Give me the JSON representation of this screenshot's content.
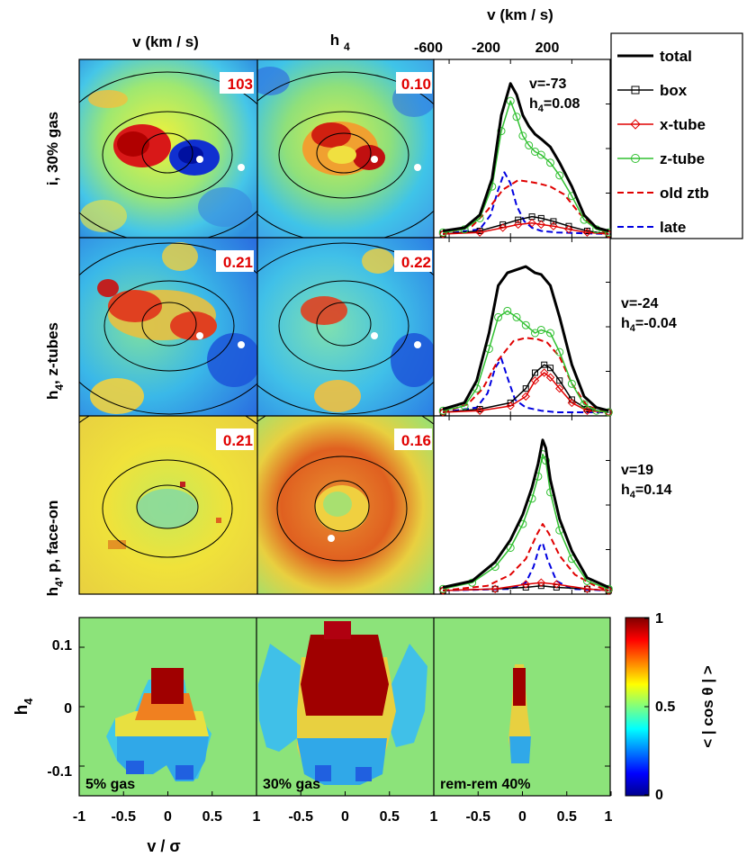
{
  "header": {
    "col1_title": "v (km / s)",
    "col2_title": "h",
    "col2_sub": "4",
    "col3_title": "v (km / s)",
    "col3_ticks": [
      "-600",
      "-200",
      "200"
    ]
  },
  "rows": [
    {
      "label": "i, 30% gas",
      "label_sub": "",
      "map_v_badge": "103",
      "map_h4_badge": "0.10",
      "annot_v": "v=-73",
      "annot_h": "h",
      "annot_h_sub": "4",
      "annot_h_val": "=0.08"
    },
    {
      "label": "h",
      "label_sub": "4",
      "label_rest": ", z-tubes",
      "map_v_badge": "0.21",
      "map_h4_badge": "0.22",
      "annot_v": "v=-24",
      "annot_h": "h",
      "annot_h_sub": "4",
      "annot_h_val": "=-0.04"
    },
    {
      "label": "h",
      "label_sub": "4",
      "label_rest": ", p, face-on",
      "map_v_badge": "0.21",
      "map_h4_badge": "0.16",
      "annot_v": "v=19",
      "annot_h": "h",
      "annot_h_sub": "4",
      "annot_h_val": "=0.14"
    }
  ],
  "legend": {
    "entries": [
      {
        "label": "total",
        "color": "#000000",
        "style": "solid-thick"
      },
      {
        "label": "box",
        "color": "#000000",
        "style": "square-marker"
      },
      {
        "label": "x-tube",
        "color": "#e00000",
        "style": "diamond-marker"
      },
      {
        "label": "z-tube",
        "color": "#30c030",
        "style": "circle-marker"
      },
      {
        "label": "old ztb",
        "color": "#e00000",
        "style": "dashed"
      },
      {
        "label": "late",
        "color": "#0000e0",
        "style": "dashed"
      }
    ]
  },
  "bottom": {
    "ylabel": "h",
    "ylabel_sub": "4",
    "xlabel": "v / σ",
    "yticks": [
      "0.1",
      "0",
      "-0.1"
    ],
    "xticks": [
      "-1",
      "-0.5",
      "0",
      "0.5",
      "1",
      "-0.5",
      "0",
      "0.5",
      "1",
      "-0.5",
      "0",
      "0.5",
      "1"
    ],
    "panels": [
      "5% gas",
      "30% gas",
      "rem-rem 40%"
    ],
    "colorbar_label": "< | cos θ | >",
    "colorbar_ticks": [
      "1",
      "0.5",
      "0"
    ]
  },
  "chart_data": [
    {
      "type": "line",
      "title": "",
      "xlabel": "v (km / s)",
      "xticks": [
        -600,
        -200,
        200
      ],
      "xlim": [
        -700,
        450
      ],
      "row": 1,
      "annotation": "v=-73, h4=0.08",
      "series": [
        {
          "name": "total",
          "x": [
            -640,
            -500,
            -400,
            -320,
            -260,
            -200,
            -160,
            -120,
            -80,
            -40,
            0,
            60,
            120,
            200,
            280,
            360,
            440
          ],
          "y": [
            0.02,
            0.04,
            0.12,
            0.35,
            0.75,
            0.95,
            0.88,
            0.75,
            0.68,
            0.63,
            0.6,
            0.55,
            0.45,
            0.3,
            0.12,
            0.04,
            0.02
          ]
        },
        {
          "name": "box",
          "x": [
            -640,
            -400,
            -250,
            -150,
            -60,
            0,
            80,
            180,
            300,
            440
          ],
          "y": [
            0,
            0.02,
            0.06,
            0.09,
            0.11,
            0.1,
            0.08,
            0.05,
            0.02,
            0
          ]
        },
        {
          "name": "x-tube",
          "x": [
            -640,
            -400,
            -250,
            -150,
            -60,
            0,
            80,
            180,
            300,
            440
          ],
          "y": [
            0,
            0.01,
            0.04,
            0.06,
            0.07,
            0.06,
            0.05,
            0.03,
            0.01,
            0
          ]
        },
        {
          "name": "z-tube",
          "x": [
            -640,
            -500,
            -400,
            -320,
            -260,
            -200,
            -160,
            -120,
            -80,
            -40,
            0,
            60,
            120,
            200,
            280,
            360,
            440
          ],
          "y": [
            0.01,
            0.03,
            0.1,
            0.3,
            0.65,
            0.84,
            0.74,
            0.62,
            0.56,
            0.52,
            0.5,
            0.45,
            0.37,
            0.24,
            0.09,
            0.03,
            0.01
          ]
        },
        {
          "name": "old ztb",
          "x": [
            -640,
            -450,
            -350,
            -250,
            -150,
            -80,
            -20,
            60,
            150,
            250,
            350,
            440
          ],
          "y": [
            0,
            0.05,
            0.15,
            0.28,
            0.34,
            0.33,
            0.32,
            0.3,
            0.25,
            0.13,
            0.04,
            0
          ]
        },
        {
          "name": "late",
          "x": [
            -640,
            -400,
            -330,
            -280,
            -240,
            -200,
            -160,
            -110,
            -60,
            0,
            100,
            440
          ],
          "y": [
            0,
            0.03,
            0.12,
            0.28,
            0.39,
            0.32,
            0.18,
            0.08,
            0.04,
            0.02,
            0.01,
            0
          ]
        }
      ]
    },
    {
      "type": "line",
      "title": "",
      "xlabel": "v (km / s)",
      "xticks": [
        -600,
        -200,
        200
      ],
      "xlim": [
        -700,
        450
      ],
      "row": 2,
      "annotation": "v=-24, h4=-0.04",
      "series": [
        {
          "name": "total",
          "x": [
            -640,
            -500,
            -420,
            -340,
            -280,
            -220,
            -160,
            -100,
            -40,
            0,
            60,
            120,
            200,
            280,
            360,
            440
          ],
          "y": [
            0.02,
            0.06,
            0.2,
            0.5,
            0.8,
            0.88,
            0.9,
            0.92,
            0.88,
            0.87,
            0.8,
            0.6,
            0.3,
            0.1,
            0.03,
            0.01
          ]
        },
        {
          "name": "box",
          "x": [
            -640,
            -400,
            -200,
            -100,
            -40,
            20,
            60,
            120,
            200,
            300,
            440
          ],
          "y": [
            0,
            0.02,
            0.06,
            0.15,
            0.25,
            0.3,
            0.28,
            0.2,
            0.08,
            0.02,
            0
          ]
        },
        {
          "name": "x-tube",
          "x": [
            -640,
            -400,
            -200,
            -100,
            -40,
            20,
            60,
            120,
            200,
            300,
            440
          ],
          "y": [
            0,
            0.01,
            0.04,
            0.1,
            0.2,
            0.25,
            0.22,
            0.15,
            0.06,
            0.01,
            0
          ]
        },
        {
          "name": "z-tube",
          "x": [
            -640,
            -500,
            -420,
            -340,
            -280,
            -220,
            -160,
            -100,
            -40,
            0,
            60,
            120,
            200,
            280,
            360,
            440
          ],
          "y": [
            0.01,
            0.04,
            0.15,
            0.4,
            0.6,
            0.64,
            0.6,
            0.55,
            0.5,
            0.52,
            0.5,
            0.38,
            0.18,
            0.05,
            0.01,
            0
          ]
        },
        {
          "name": "old ztb",
          "x": [
            -640,
            -480,
            -380,
            -280,
            -180,
            -100,
            -20,
            40,
            120,
            200,
            300,
            440
          ],
          "y": [
            0,
            0.05,
            0.15,
            0.33,
            0.45,
            0.47,
            0.46,
            0.44,
            0.35,
            0.18,
            0.04,
            0
          ]
        },
        {
          "name": "late",
          "x": [
            -640,
            -420,
            -350,
            -300,
            -260,
            -220,
            -170,
            -100,
            0,
            100,
            440
          ],
          "y": [
            0,
            0.03,
            0.12,
            0.28,
            0.34,
            0.22,
            0.08,
            0.03,
            0.01,
            0,
            0
          ]
        }
      ]
    },
    {
      "type": "line",
      "title": "",
      "xlabel": "v (km / s)",
      "xticks": [
        -600,
        -200,
        200
      ],
      "xlim": [
        -700,
        450
      ],
      "row": 3,
      "annotation": "v=19, h4=0.14",
      "series": [
        {
          "name": "total",
          "x": [
            -640,
            -450,
            -300,
            -200,
            -120,
            -60,
            -20,
            10,
            30,
            60,
            120,
            200,
            300,
            440
          ],
          "y": [
            0.02,
            0.06,
            0.18,
            0.32,
            0.48,
            0.65,
            0.8,
            0.95,
            0.9,
            0.7,
            0.45,
            0.25,
            0.08,
            0.02
          ]
        },
        {
          "name": "box",
          "x": [
            -640,
            -300,
            -100,
            0,
            100,
            300,
            440
          ],
          "y": [
            0,
            0.01,
            0.02,
            0.03,
            0.02,
            0.01,
            0
          ]
        },
        {
          "name": "x-tube",
          "x": [
            -640,
            -300,
            -100,
            0,
            100,
            300,
            440
          ],
          "y": [
            0,
            0.01,
            0.04,
            0.05,
            0.04,
            0.01,
            0
          ]
        },
        {
          "name": "z-tube",
          "x": [
            -640,
            -450,
            -300,
            -200,
            -120,
            -60,
            -20,
            10,
            30,
            60,
            120,
            200,
            300,
            440
          ],
          "y": [
            0.01,
            0.05,
            0.15,
            0.27,
            0.42,
            0.58,
            0.72,
            0.86,
            0.82,
            0.62,
            0.38,
            0.2,
            0.06,
            0.01
          ]
        },
        {
          "name": "old ztb",
          "x": [
            -640,
            -350,
            -200,
            -100,
            -30,
            10,
            50,
            120,
            220,
            350,
            440
          ],
          "y": [
            0,
            0.03,
            0.1,
            0.2,
            0.35,
            0.42,
            0.36,
            0.22,
            0.1,
            0.03,
            0
          ]
        },
        {
          "name": "late",
          "x": [
            -640,
            -200,
            -100,
            -50,
            -10,
            10,
            40,
            100,
            200,
            440
          ],
          "y": [
            0,
            0.01,
            0.05,
            0.15,
            0.28,
            0.3,
            0.2,
            0.06,
            0.01,
            0
          ]
        }
      ]
    },
    {
      "type": "heatmap",
      "title": "",
      "xlabel": "v / σ",
      "ylabel": "h4",
      "xlim": [
        -1,
        1
      ],
      "ylim": [
        -0.15,
        0.15
      ],
      "colorbar_label": "< | cos θ | >",
      "colorbar_range": [
        0,
        1
      ],
      "panels": [
        "5% gas",
        "30% gas",
        "rem-rem 40%"
      ]
    }
  ]
}
